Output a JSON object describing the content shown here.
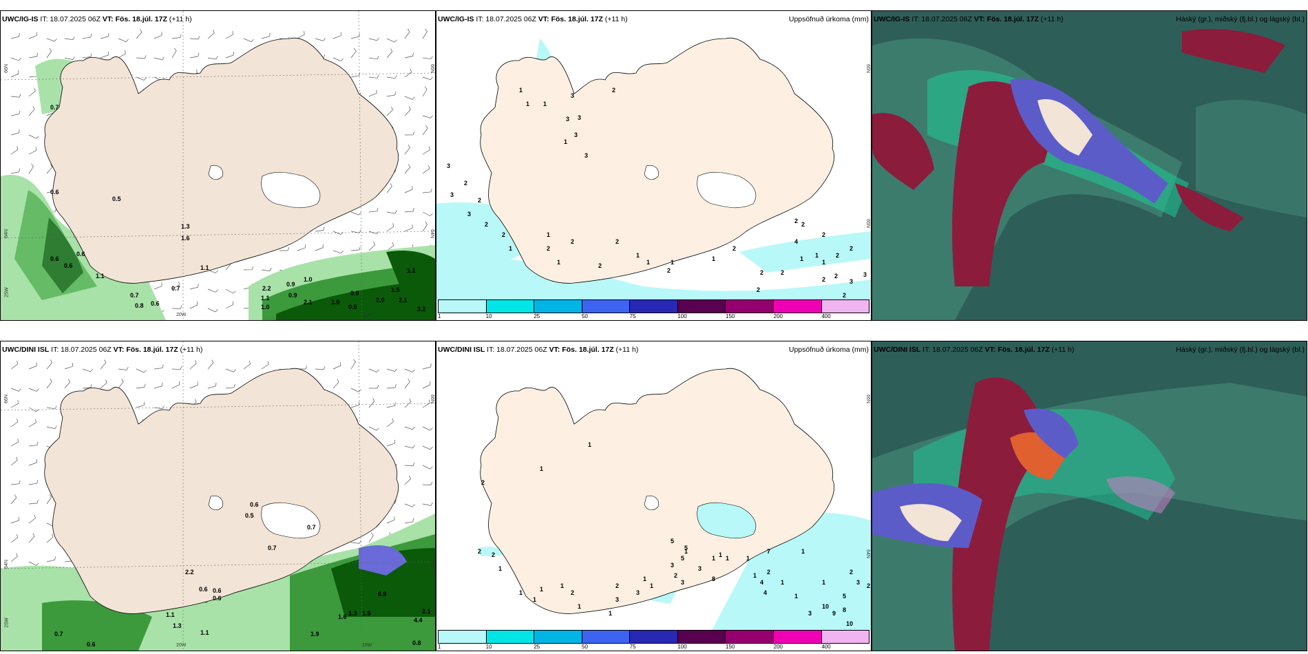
{
  "colors": {
    "land": "#f2e4d6",
    "precip": "#b8f8f8",
    "green_light": "#a8e2a8",
    "green_mid": "#3c9a3c",
    "green_dark": "#0a5a0a",
    "cloud_bg": "#2e5e58",
    "cloud_teal": "#20c898",
    "cloud_red": "#8c1c3c",
    "cloud_blue": "#5c5cc8"
  },
  "panels": [
    {
      "model": "UWC/IG-IS",
      "it": "IT: 18.07.2025 06Z",
      "vt_label": "VT:",
      "vt": "Fös. 18.júl. 17Z",
      "lead": "(+11 h)",
      "right": ""
    },
    {
      "model": "UWC/IG-IS",
      "it": "IT: 18.07.2025 06Z",
      "vt_label": "VT:",
      "vt": "Fös. 18.júl. 17Z",
      "lead": "(+11 h)",
      "right": "Uppsöfnuð úrkoma (mm)"
    },
    {
      "model": "UWC/IG-IS",
      "it": "IT: 18.07.2025 06Z",
      "vt_label": "VT:",
      "vt": "Fös. 18.júl. 17Z",
      "lead": "(+11 h)",
      "right": "Háský (gr.), miðský (fj.bl.) og lágský (bl.)"
    },
    {
      "model": "UWC/DINI ISL",
      "it": "IT: 18.07.2025 06Z",
      "vt_label": "VT:",
      "vt": "Fös. 18.júl. 17Z",
      "lead": "(+11 h)",
      "right": ""
    },
    {
      "model": "UWC/DINI ISL",
      "it": "IT: 18.07.2025 06Z",
      "vt_label": "VT:",
      "vt": "Fös. 18.júl. 17Z",
      "lead": "(+11 h)",
      "right": "Uppsöfnuð úrkoma (mm)"
    },
    {
      "model": "UWC/DINI ISL",
      "it": "IT: 18.07.2025 06Z",
      "vt_label": "VT:",
      "vt": "Fös. 18.júl. 17Z",
      "lead": "(+11 h)",
      "right": "Háský (gr.), miðský (fj.bl.) og lágský (bl.)"
    }
  ],
  "colorbar": {
    "ticks": [
      "1",
      "10",
      "25",
      "50",
      "75",
      "100",
      "150",
      "200",
      "400"
    ],
    "colors": [
      "#b8f8f8",
      "#00e6e6",
      "#00b4e6",
      "#3c64f0",
      "#2828b4",
      "#5a0050",
      "#96006e",
      "#f000b4",
      "#f0b4f0"
    ]
  },
  "axis_labels": {
    "lat66": "66N",
    "lat64": "64N",
    "lon25": "25W",
    "lon20": "20W",
    "lon15": "15W",
    "lat65": "65N"
  },
  "p1_values": [
    "0.7",
    "0.6",
    "0.5",
    "1.3",
    "1.6",
    "0.6",
    "0.6",
    "0.6",
    "1.1",
    "0.7",
    "0.8",
    "0.6",
    "0.7",
    "1.1",
    "2.2",
    "0.9",
    "1.0",
    "0.9",
    "1.1",
    "1.0",
    "2.1",
    "1.0",
    "0.9",
    "0.9",
    "2.0",
    "1.5",
    "2.1",
    "3.2",
    "1.1"
  ],
  "p2_values": [
    "1",
    "1",
    "1",
    "1",
    "3",
    "3",
    "3",
    "3",
    "3",
    "2",
    "1",
    "1",
    "1",
    "2",
    "2",
    "2",
    "1",
    "1",
    "1",
    "1",
    "2",
    "2",
    "2",
    "2",
    "1",
    "2",
    "2",
    "1",
    "1",
    "2",
    "4",
    "2",
    "2",
    "2",
    "2",
    "3",
    "3",
    "3",
    "2",
    "3",
    "2",
    "3",
    "2",
    "2",
    "5",
    "4",
    "2",
    "2",
    "3",
    "2",
    "2"
  ],
  "p4_values": [
    "0.6",
    "0.5",
    "0.7",
    "0.7",
    "2.2",
    "0.6",
    "0.6",
    "0.6",
    "1.1",
    "1.3",
    "1.1",
    "0.7",
    "0.6",
    "1.9",
    "6.9",
    "1.6",
    "1.3",
    "1.5",
    "4.4",
    "2.1",
    "0.8"
  ],
  "p5_values": [
    "1",
    "1",
    "2",
    "2",
    "2",
    "1",
    "1",
    "1",
    "1",
    "1",
    "2",
    "1",
    "1",
    "3",
    "3",
    "3",
    "2",
    "3",
    "8",
    "3",
    "5",
    "5",
    "5",
    "1",
    "1",
    "1",
    "1",
    "1",
    "1",
    "2",
    "1",
    "4",
    "4",
    "10",
    "9",
    "8",
    "10",
    "5",
    "3",
    "3",
    "2",
    "2",
    "1",
    "1",
    "7",
    "1",
    "2",
    "1",
    "1"
  ]
}
